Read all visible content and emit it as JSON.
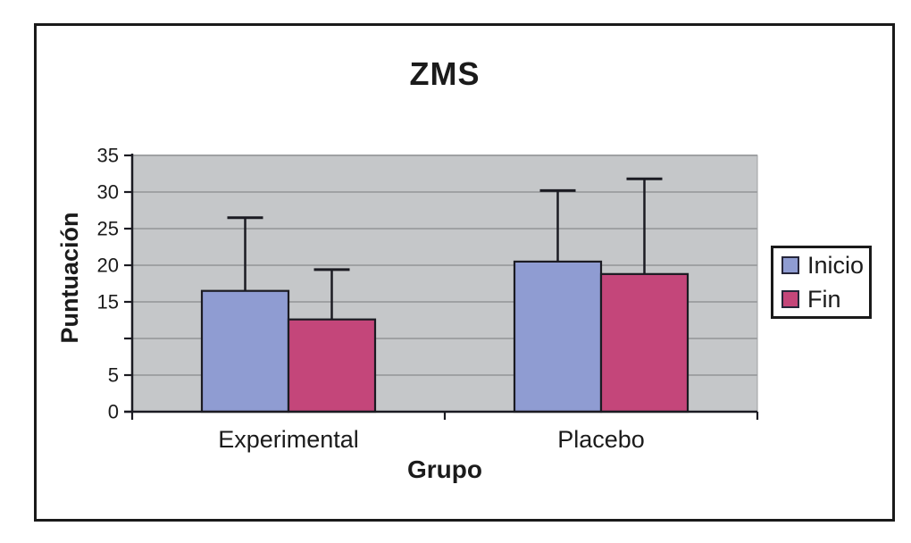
{
  "chart_data": {
    "type": "bar",
    "title": "ZMS",
    "xlabel": "Grupo",
    "ylabel": "Puntuación",
    "categories": [
      "Experimental",
      "Placebo"
    ],
    "series": [
      {
        "name": "Inicio",
        "color": "#8F9CD2",
        "values": [
          16.5,
          20.5
        ],
        "error_top": [
          26.5,
          30.2
        ]
      },
      {
        "name": "Fin",
        "color": "#C4467A",
        "values": [
          12.6,
          18.8
        ],
        "error_top": [
          19.4,
          31.8
        ]
      }
    ],
    "ylim": [
      0,
      35
    ],
    "yticks": {
      "values": [
        35,
        30,
        25,
        20,
        15,
        5,
        0
      ],
      "labels": [
        "35",
        "30",
        "25",
        "20",
        "15",
        "5",
        "0"
      ]
    },
    "gridlines": [
      5,
      10,
      15,
      20,
      25,
      30,
      35
    ],
    "axis_tick_values": [
      0,
      5,
      10,
      15,
      20,
      25,
      30,
      35
    ],
    "grid": true,
    "legend_position": "right",
    "colors": {
      "plot_bg": "#C5C7C9",
      "gridline": "#9FA1A3",
      "axis": "#1B1B22",
      "bar_border": "#1B1B22",
      "text": "#1B1B1B",
      "frame": "#1A1A1A",
      "legend_bg": "#FFFFFF"
    }
  }
}
